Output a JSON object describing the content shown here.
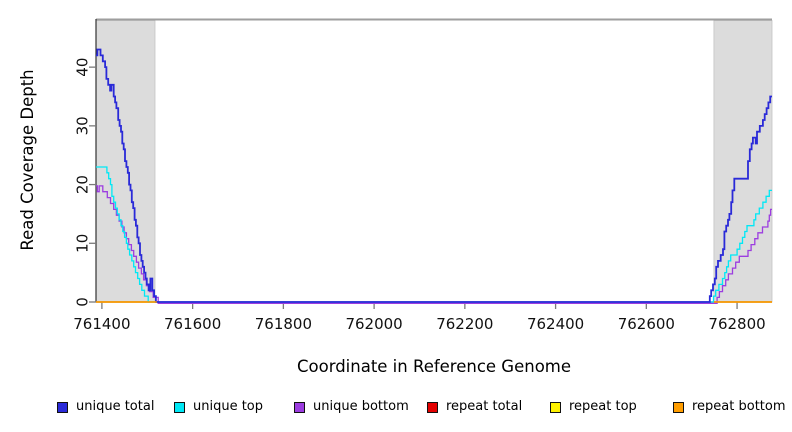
{
  "figure": {
    "background": "#ffffff",
    "band_color": "#dcdcdc",
    "band_edge_color": "#c4c4c4",
    "top_border_color": "#9e9e9e",
    "axis_color": "#333333",
    "tick_color": "#7a7a7a"
  },
  "chart_data": {
    "type": "line",
    "step": true,
    "title": "",
    "xlabel": "Coordinate in Reference Genome",
    "ylabel": "Read Coverage Depth",
    "xlim": [
      761387,
      762877
    ],
    "ylim": [
      0,
      48.2
    ],
    "x_ticks": [
      761400,
      761600,
      761800,
      762000,
      762200,
      762400,
      762600,
      762800
    ],
    "y_ticks": [
      0,
      10,
      20,
      30,
      40
    ],
    "grid": false,
    "legend_position": "bottom",
    "shaded_regions": [
      {
        "x0": 761387,
        "x1": 761517
      },
      {
        "x0": 762749,
        "x1": 762877
      }
    ],
    "series": [
      {
        "name": "repeat total",
        "color": "#e30000",
        "segments": [
          [
            [
              761387,
              0
            ],
            [
              761517,
              0
            ]
          ],
          [
            [
              762749,
              0
            ],
            [
              762877,
              0
            ]
          ]
        ]
      },
      {
        "name": "repeat top",
        "color": "#fff200",
        "segments": [
          [
            [
              761387,
              0
            ],
            [
              761517,
              0
            ]
          ],
          [
            [
              762749,
              0
            ],
            [
              762877,
              0
            ]
          ]
        ]
      },
      {
        "name": "unique bottom",
        "color": "#9c3de0",
        "segments": [
          [
            [
              761387,
              20
            ],
            [
              761390,
              19
            ],
            [
              761394,
              20
            ],
            [
              761402,
              19
            ],
            [
              761412,
              18
            ],
            [
              761419,
              17
            ],
            [
              761426,
              16
            ],
            [
              761432,
              15
            ],
            [
              761438,
              14
            ],
            [
              761444,
              13
            ],
            [
              761449,
              12
            ],
            [
              761454,
              11
            ],
            [
              761459,
              10
            ],
            [
              761465,
              9
            ],
            [
              761470,
              8
            ],
            [
              761476,
              7
            ],
            [
              761481,
              6
            ],
            [
              761487,
              5
            ],
            [
              761492,
              4
            ],
            [
              761498,
              3
            ],
            [
              761505,
              2
            ],
            [
              761513,
              1
            ],
            [
              761524,
              0
            ],
            [
              762752,
              0
            ],
            [
              762756,
              1
            ],
            [
              762761,
              2
            ],
            [
              762768,
              3
            ],
            [
              762775,
              4
            ],
            [
              762781,
              5
            ],
            [
              762790,
              6
            ],
            [
              762797,
              7
            ],
            [
              762805,
              8
            ],
            [
              762824,
              9
            ],
            [
              762831,
              10
            ],
            [
              762839,
              11
            ],
            [
              762846,
              12
            ],
            [
              762856,
              13
            ],
            [
              762868,
              14
            ],
            [
              762871,
              15
            ],
            [
              762874,
              16
            ],
            [
              762877,
              16
            ]
          ]
        ]
      },
      {
        "name": "unique top",
        "color": "#00e8f5",
        "segments": [
          [
            [
              761387,
              23
            ],
            [
              761411,
              22
            ],
            [
              761415,
              21
            ],
            [
              761419,
              20
            ],
            [
              761422,
              18
            ],
            [
              761426,
              17
            ],
            [
              761430,
              16
            ],
            [
              761434,
              15
            ],
            [
              761438,
              14
            ],
            [
              761442,
              13
            ],
            [
              761446,
              12
            ],
            [
              761450,
              11
            ],
            [
              761454,
              10
            ],
            [
              761457,
              9
            ],
            [
              761461,
              8
            ],
            [
              761466,
              7
            ],
            [
              761470,
              6
            ],
            [
              761474,
              5
            ],
            [
              761479,
              4
            ],
            [
              761483,
              3
            ],
            [
              761488,
              2
            ],
            [
              761494,
              1
            ],
            [
              761502,
              0
            ],
            [
              762744,
              0
            ],
            [
              762748,
              1
            ],
            [
              762753,
              2
            ],
            [
              762760,
              3
            ],
            [
              762768,
              4
            ],
            [
              762773,
              5
            ],
            [
              762777,
              6
            ],
            [
              762781,
              7
            ],
            [
              762786,
              8
            ],
            [
              762800,
              9
            ],
            [
              762806,
              10
            ],
            [
              762812,
              11
            ],
            [
              762817,
              12
            ],
            [
              762822,
              13
            ],
            [
              762837,
              14
            ],
            [
              762841,
              15
            ],
            [
              762849,
              16
            ],
            [
              762857,
              17
            ],
            [
              762864,
              18
            ],
            [
              762871,
              19
            ],
            [
              762877,
              19
            ]
          ]
        ]
      },
      {
        "name": "unique total",
        "color": "#2a2ad8",
        "segments": [
          [
            [
              761387,
              42
            ],
            [
              761390,
              43
            ],
            [
              761397,
              42
            ],
            [
              761402,
              41
            ],
            [
              761407,
              40
            ],
            [
              761410,
              38
            ],
            [
              761414,
              37
            ],
            [
              761418,
              36
            ],
            [
              761421,
              37
            ],
            [
              761426,
              35
            ],
            [
              761429,
              34
            ],
            [
              761432,
              33
            ],
            [
              761436,
              31
            ],
            [
              761439,
              30
            ],
            [
              761442,
              29
            ],
            [
              761445,
              27
            ],
            [
              761448,
              26
            ],
            [
              761451,
              24
            ],
            [
              761454,
              23
            ],
            [
              761457,
              22
            ],
            [
              761460,
              20
            ],
            [
              761463,
              19
            ],
            [
              761466,
              17
            ],
            [
              761469,
              16
            ],
            [
              761472,
              14
            ],
            [
              761475,
              13
            ],
            [
              761478,
              11
            ],
            [
              761481,
              10
            ],
            [
              761484,
              8
            ],
            [
              761487,
              7
            ],
            [
              761490,
              6
            ],
            [
              761493,
              5
            ],
            [
              761496,
              4
            ],
            [
              761499,
              3
            ],
            [
              761503,
              2
            ],
            [
              761507,
              4
            ],
            [
              761511,
              2
            ],
            [
              761515,
              1
            ],
            [
              761519,
              0
            ],
            [
              762737,
              0
            ],
            [
              762740,
              1
            ],
            [
              762743,
              2
            ],
            [
              762747,
              3
            ],
            [
              762751,
              4
            ],
            [
              762754,
              6
            ],
            [
              762758,
              7
            ],
            [
              762764,
              8
            ],
            [
              762769,
              9
            ],
            [
              762772,
              12
            ],
            [
              762776,
              13
            ],
            [
              762780,
              14
            ],
            [
              762783,
              15
            ],
            [
              762787,
              17
            ],
            [
              762790,
              19
            ],
            [
              762794,
              21
            ],
            [
              762824,
              24
            ],
            [
              762828,
              26
            ],
            [
              762832,
              27
            ],
            [
              762835,
              28
            ],
            [
              762841,
              27
            ],
            [
              762844,
              29
            ],
            [
              762850,
              30
            ],
            [
              762857,
              31
            ],
            [
              762861,
              32
            ],
            [
              762865,
              33
            ],
            [
              762869,
              34
            ],
            [
              762873,
              35
            ],
            [
              762877,
              35
            ]
          ]
        ]
      },
      {
        "name": "repeat bottom",
        "color": "#ff9d00",
        "segments": [
          [
            [
              761387,
              0
            ],
            [
              761521,
              0
            ]
          ],
          [
            [
              762749,
              0
            ],
            [
              762877,
              0
            ]
          ]
        ]
      }
    ],
    "legend": {
      "items": [
        {
          "label": "unique total",
          "color": "#2a2ad8"
        },
        {
          "label": "unique top",
          "color": "#00e8f5"
        },
        {
          "label": "unique bottom",
          "color": "#9c3de0"
        },
        {
          "label": "repeat total",
          "color": "#e30000"
        },
        {
          "label": "repeat top",
          "color": "#fff200"
        },
        {
          "label": "repeat bottom",
          "color": "#ff9d00"
        }
      ]
    }
  }
}
